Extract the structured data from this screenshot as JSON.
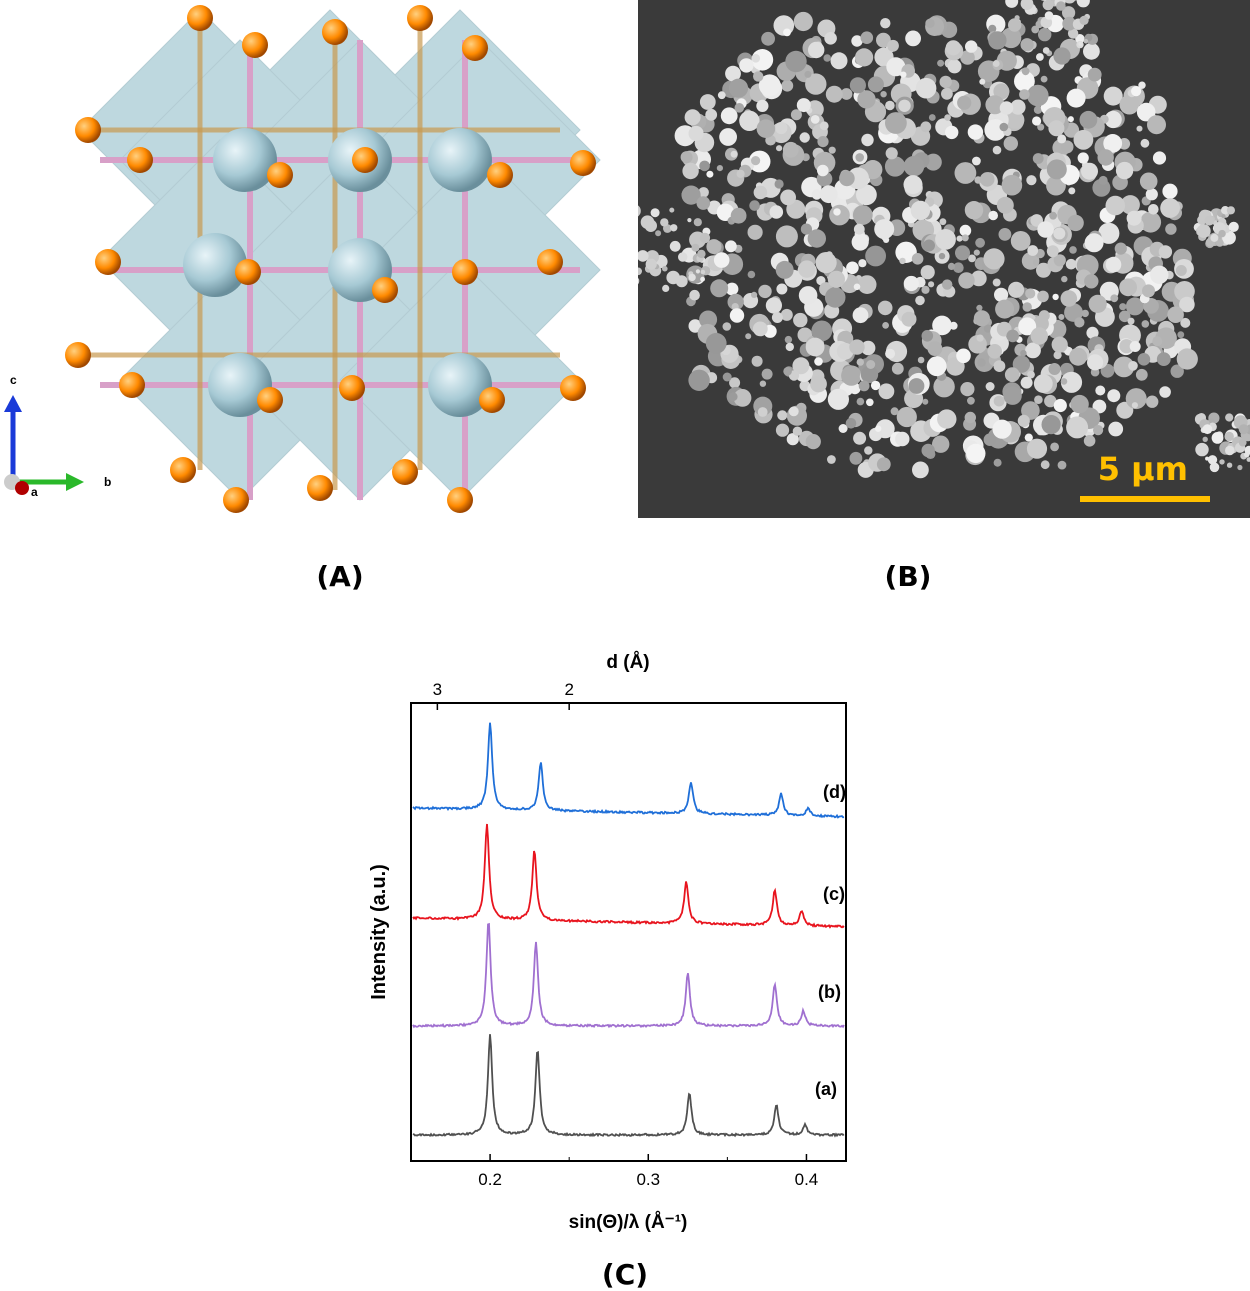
{
  "panels": {
    "a_label": "(A)",
    "b_label": "(B)",
    "c_label": "(C)"
  },
  "crystal": {
    "axis_c": "c",
    "axis_a": "a",
    "axis_b": "b",
    "colors": {
      "octahedra": "#7fb3c0",
      "anion": "#ff8a00",
      "center": "#a6c9d4",
      "bond_pink": "#d8a0c8",
      "bond_tan": "#c89a50"
    }
  },
  "sem": {
    "scale_label": "5 μm",
    "colors": {
      "background": "#3a3a3a",
      "particles": "#d8d8d8",
      "scale": "#ffc000"
    }
  },
  "chart_data": {
    "type": "line",
    "title": "",
    "xlabel": "sin(Θ)/λ   (Å⁻¹)",
    "ylabel": "Intensity (a.u.)",
    "top_xlabel": "d (Å)",
    "xlim": [
      0.15,
      0.425
    ],
    "x_ticks": [
      0.2,
      0.3,
      0.4
    ],
    "x_tick_labels": [
      "0.2",
      "0.3",
      "0.4"
    ],
    "top_ticks": [
      3,
      2
    ],
    "top_tick_labels": [
      "3",
      "2"
    ],
    "grid": false,
    "series": [
      {
        "name": "(a)",
        "color": "#505050",
        "peaks": [
          [
            0.2,
            1.0
          ],
          [
            0.23,
            0.85
          ],
          [
            0.326,
            0.42
          ],
          [
            0.381,
            0.3
          ],
          [
            0.399,
            0.1
          ]
        ]
      },
      {
        "name": "(b)",
        "color": "#a070d0",
        "peaks": [
          [
            0.199,
            1.0
          ],
          [
            0.229,
            0.8
          ],
          [
            0.325,
            0.5
          ],
          [
            0.38,
            0.4
          ],
          [
            0.398,
            0.14
          ]
        ]
      },
      {
        "name": "(c)",
        "color": "#e8141e",
        "peaks": [
          [
            0.198,
            0.95
          ],
          [
            0.228,
            0.7
          ],
          [
            0.324,
            0.42
          ],
          [
            0.38,
            0.35
          ],
          [
            0.397,
            0.15
          ]
        ]
      },
      {
        "name": "(d)",
        "color": "#1f6fd8",
        "peaks": [
          [
            0.2,
            1.0
          ],
          [
            0.232,
            0.55
          ],
          [
            0.327,
            0.36
          ],
          [
            0.384,
            0.25
          ],
          [
            0.401,
            0.09
          ]
        ]
      }
    ]
  }
}
